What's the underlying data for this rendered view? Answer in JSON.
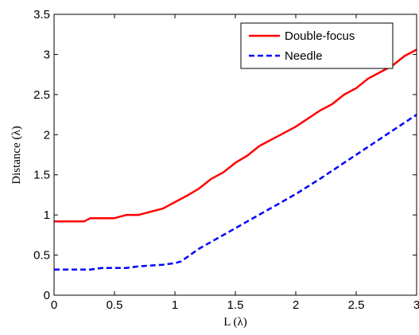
{
  "chart_data": {
    "type": "line",
    "title": "",
    "xlabel": "L (λ)",
    "ylabel": "Distance (λ)",
    "xlim": [
      0,
      3
    ],
    "ylim": [
      0,
      3.5
    ],
    "xticks": [
      0,
      0.5,
      1,
      1.5,
      2,
      2.5,
      3
    ],
    "xtick_labels": [
      "0",
      "0.5",
      "1",
      "1.5",
      "2",
      "2.5",
      "3"
    ],
    "yticks": [
      0,
      0.5,
      1,
      1.5,
      2,
      2.5,
      3,
      3.5
    ],
    "ytick_labels": [
      "0",
      "0.5",
      "1",
      "1.5",
      "2",
      "2.5",
      "3",
      "3.5"
    ],
    "grid": false,
    "legend_position": "top-right",
    "series": [
      {
        "name": "Double-focus",
        "color": "#ff0000",
        "style": "solid",
        "x": [
          0,
          0.1,
          0.25,
          0.3,
          0.5,
          0.6,
          0.7,
          0.9,
          1.0,
          1.1,
          1.2,
          1.3,
          1.4,
          1.5,
          1.6,
          1.7,
          1.8,
          1.9,
          2.0,
          2.1,
          2.2,
          2.3,
          2.4,
          2.5,
          2.6,
          2.7,
          2.8,
          2.9,
          3.0
        ],
        "y": [
          0.92,
          0.92,
          0.92,
          0.96,
          0.96,
          1.0,
          1.0,
          1.08,
          1.16,
          1.24,
          1.33,
          1.45,
          1.53,
          1.65,
          1.74,
          1.86,
          1.94,
          2.02,
          2.1,
          2.2,
          2.3,
          2.38,
          2.5,
          2.58,
          2.7,
          2.78,
          2.86,
          2.98,
          3.06
        ]
      },
      {
        "name": "Needle",
        "color": "#0000ff",
        "style": "dashed",
        "x": [
          0,
          0.1,
          0.3,
          0.4,
          0.6,
          0.7,
          0.9,
          1.0,
          1.05,
          1.2,
          1.4,
          1.6,
          1.8,
          2.0,
          2.2,
          2.4,
          2.6,
          2.8,
          3.0
        ],
        "y": [
          0.32,
          0.32,
          0.32,
          0.34,
          0.34,
          0.36,
          0.38,
          0.4,
          0.42,
          0.58,
          0.75,
          0.92,
          1.09,
          1.26,
          1.45,
          1.65,
          1.85,
          2.05,
          2.25
        ]
      }
    ]
  }
}
